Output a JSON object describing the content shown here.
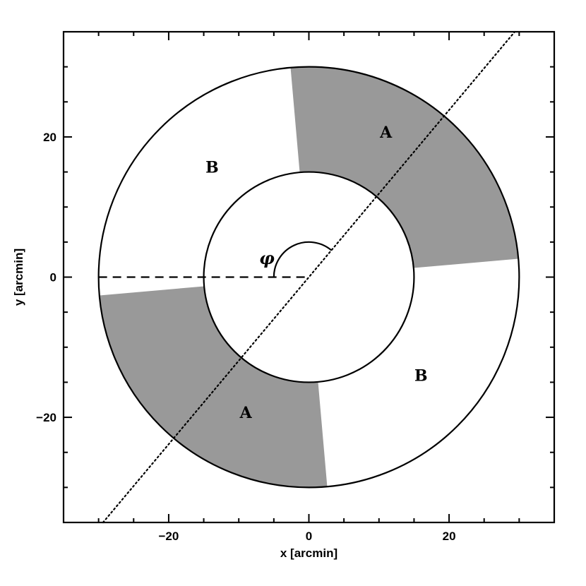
{
  "chart_data": {
    "type": "diagram",
    "xlabel": "x [arcmin]",
    "ylabel": "y [arcmin]",
    "xlim": [
      -35,
      35
    ],
    "ylim": [
      -35,
      35
    ],
    "x_ticks": [
      {
        "value": -20,
        "label": "−20"
      },
      {
        "value": 0,
        "label": "0"
      },
      {
        "value": 20,
        "label": "20"
      }
    ],
    "y_ticks": [
      {
        "value": 20,
        "label": "20"
      },
      {
        "value": 0,
        "label": "0"
      },
      {
        "value": -20,
        "label": "−20"
      }
    ],
    "minor_tick_step": 5,
    "annulus": {
      "inner_radius": 15,
      "outer_radius": 30
    },
    "shaded_sectors": [
      {
        "label": "A",
        "start_angle_deg": 5,
        "end_angle_deg": 95,
        "label_pos": [
          11,
          20.5
        ]
      },
      {
        "label": "A",
        "start_angle_deg": 185,
        "end_angle_deg": 275,
        "label_pos": [
          -9,
          -19.5
        ]
      }
    ],
    "unshaded_sectors": [
      {
        "label": "B",
        "label_pos": [
          -13.8,
          15.5
        ]
      },
      {
        "label": "B",
        "label_pos": [
          16,
          -14.2
        ]
      }
    ],
    "shade_color": "#999999",
    "dashed_line": {
      "from": [
        -30,
        0
      ],
      "to": [
        0,
        0
      ]
    },
    "dotted_line": {
      "angle_deg": 50
    },
    "angle_marker": {
      "symbol": "φ",
      "radius": 5,
      "start_angle_deg": 50,
      "end_angle_deg": 180,
      "label_pos": [
        -6,
        2.5
      ]
    }
  }
}
